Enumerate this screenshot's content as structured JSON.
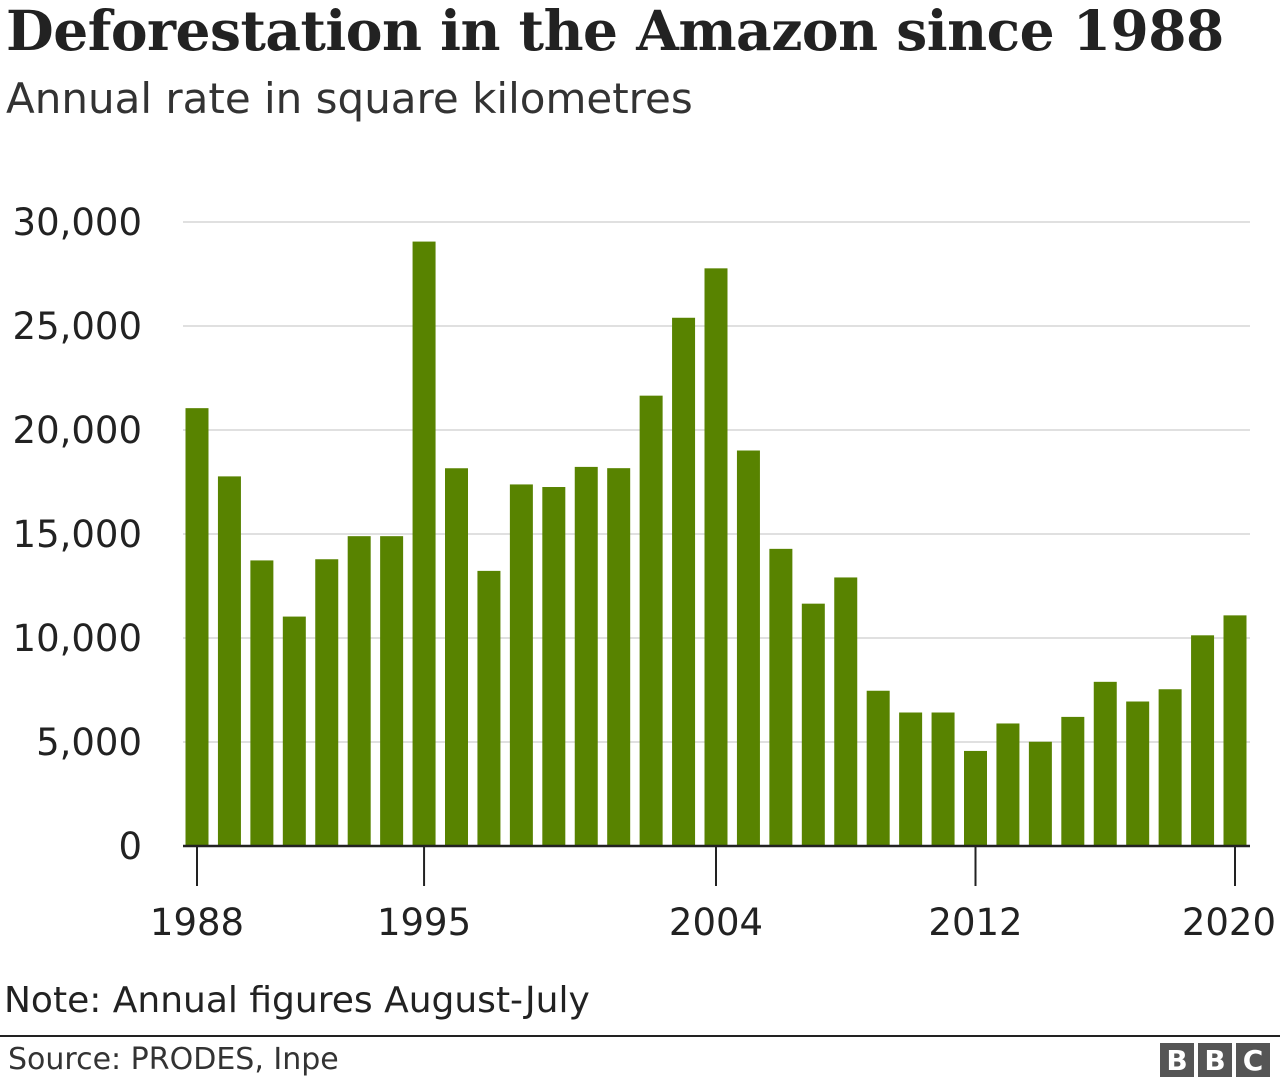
{
  "chart_data": {
    "type": "bar",
    "title": "Deforestation in the Amazon since 1988",
    "subtitle": "Annual rate in square kilometres",
    "categories": [
      1988,
      1989,
      1990,
      1991,
      1992,
      1993,
      1994,
      1995,
      1996,
      1997,
      1998,
      1999,
      2000,
      2001,
      2002,
      2003,
      2004,
      2005,
      2006,
      2007,
      2008,
      2009,
      2010,
      2011,
      2012,
      2013,
      2014,
      2015,
      2016,
      2017,
      2018,
      2019,
      2020
    ],
    "values": [
      21050,
      17770,
      13730,
      11030,
      13786,
      14896,
      14896,
      29059,
      18161,
      13227,
      17383,
      17259,
      18226,
      18165,
      21651,
      25396,
      27772,
      19014,
      14286,
      11651,
      12911,
      7464,
      6418,
      6418,
      4571,
      5891,
      5012,
      6207,
      7893,
      6947,
      7536,
      10129,
      11088
    ],
    "ylim": [
      0,
      30000
    ],
    "yticks": [
      "0",
      "5,000",
      "10,000",
      "15,000",
      "20,000",
      "25,000",
      "30,000"
    ],
    "xticks": [
      "1988",
      "1995",
      "2004",
      "2012",
      "2020"
    ],
    "grid": true,
    "bar_color": "#588300",
    "note": "Note: Annual figures August-July",
    "source": "Source: PRODES, Inpe"
  },
  "logo": "BBC"
}
